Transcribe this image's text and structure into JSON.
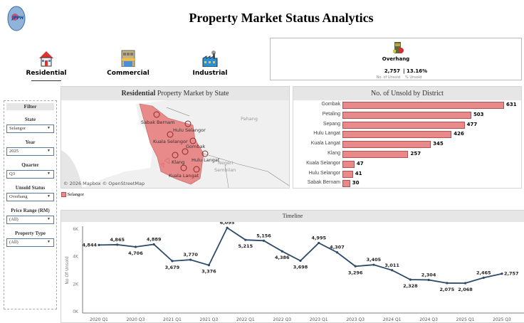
{
  "header": {
    "title": "Property Market Status Analytics",
    "logo_text": "JPPH"
  },
  "nav": [
    {
      "label": "Residential",
      "icon": "house-icon",
      "active": true
    },
    {
      "label": "Commercial",
      "icon": "shop-building-icon",
      "active": false
    },
    {
      "label": "Industrial",
      "icon": "factory-icon",
      "active": false
    }
  ],
  "overhang": {
    "label": "Overhang",
    "count": "2,757",
    "pct": "| 13.16%",
    "count_label": "No. of Unsold",
    "pct_label": "% Unsold",
    "icon": "overhang-building-icon"
  },
  "filter": {
    "title": "Filter",
    "fields": [
      {
        "label": "State",
        "value": "Selangor"
      },
      {
        "label": "Year",
        "value": "2025"
      },
      {
        "label": "Quarter",
        "value": "Q3"
      },
      {
        "label": "Unsold Status",
        "value": "Overhang"
      },
      {
        "label": "Price Range (RM)",
        "value": "(All)"
      },
      {
        "label": "Property Type",
        "value": "(All)"
      }
    ]
  },
  "map": {
    "title_bold": "Residential",
    "title_rest": " Property Market by State",
    "attribution": "© 2026 Mapbox © OpenStreetMap",
    "regions": [
      "Pahang",
      "Negeri",
      "Sembilan"
    ],
    "districts": [
      "Sabak Bernam",
      "Hulu Selangor",
      "Kuala Selangor",
      "Gombak",
      "Klang",
      "Hulu Langat",
      "Kuala Langat"
    ],
    "legend": "Selangor",
    "fill_color": "#e8898a"
  },
  "districts_chart": {
    "title": "No. of Unsold by District",
    "type": "bar",
    "categories": [
      "Gombak",
      "Petaling",
      "Sepang",
      "Hulu Langat",
      "Kuala Langat",
      "Klang",
      "Kuala Selangor",
      "Hulu Selangor",
      "Sabak Bernam"
    ],
    "values": [
      631,
      503,
      477,
      426,
      345,
      257,
      47,
      41,
      30
    ],
    "color": "#e8898a"
  },
  "chart_data": {
    "type": "line",
    "title": "Timeline",
    "ylabel": "No Of Unsold",
    "ylim": [
      0,
      6000
    ],
    "yticks": [
      "0K",
      "2K",
      "4K",
      "6K"
    ],
    "x": [
      "2020 Q1",
      "2020 Q2",
      "2020 Q3",
      "2020 Q4",
      "2021 Q1",
      "2021 Q2",
      "2021 Q3",
      "2021 Q4",
      "2022 Q1",
      "2022 Q2",
      "2022 Q3",
      "2022 Q4",
      "2023 Q1",
      "2023 Q2",
      "2023 Q3",
      "2023 Q4",
      "2024 Q1",
      "2024 Q2",
      "2024 Q3",
      "2024 Q4",
      "2025 Q1",
      "2025 Q2",
      "2025 Q3"
    ],
    "xtick_labels": [
      "2020 Q1",
      "2020 Q3",
      "2021 Q1",
      "2021 Q3",
      "2022 Q1",
      "2022 Q3",
      "2023 Q1",
      "2023 Q3",
      "2024 Q1",
      "2024 Q3",
      "2025 Q1",
      "2025 Q3"
    ],
    "values": [
      4844,
      4865,
      4706,
      4889,
      3679,
      3770,
      3376,
      6095,
      5215,
      5156,
      4386,
      3698,
      4995,
      4307,
      3296,
      3405,
      3011,
      2328,
      2304,
      2075,
      2068,
      2465,
      2757
    ],
    "labels": [
      "4,844",
      "4,865",
      "4,706",
      "4,889",
      "3,679",
      "3,770",
      "3,376",
      "6,095",
      "5,215",
      "5,156",
      "4,386",
      "3,698",
      "4,995",
      "4,307",
      "3,296",
      "3,405",
      "3,011",
      "2,328",
      "2,304",
      "2,075",
      "2,068",
      "2,465",
      "2,757"
    ],
    "color": "#2d4a6b"
  }
}
